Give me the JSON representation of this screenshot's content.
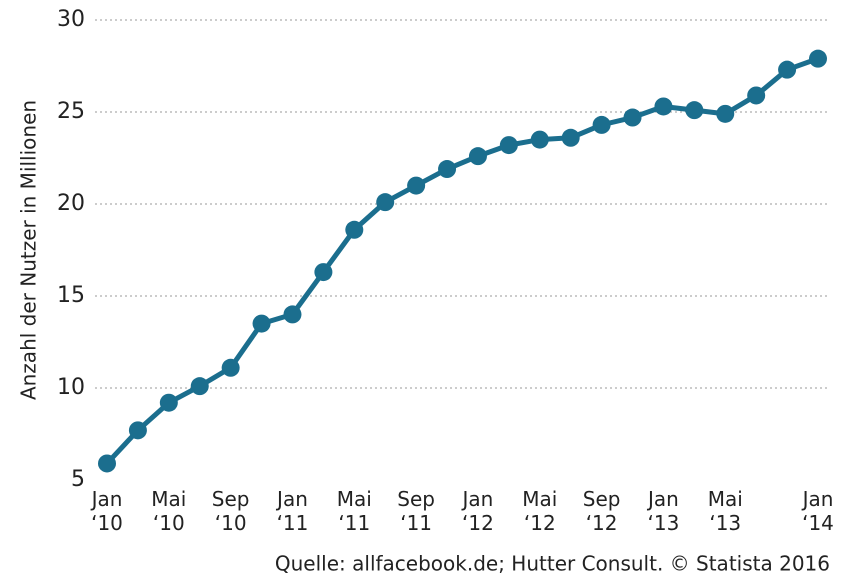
{
  "chart_data": {
    "type": "line",
    "y_label": "Anzahl der Nutzer in Millionen",
    "source": "Quelle: allfacebook.de; Hutter Consult. © Statista 2016",
    "categories": [
      "Jan ‘10",
      null,
      "Mai ‘10",
      null,
      "Sep ‘10",
      null,
      "Jan ‘11",
      null,
      "Mai ‘11",
      null,
      "Sep ‘11",
      null,
      "Jan ‘12",
      null,
      "Mai ‘12",
      null,
      "Sep ‘12",
      null,
      "Jan ‘13",
      null,
      "Mai ‘13",
      null,
      null,
      "Jan ‘14"
    ],
    "series": [
      {
        "name": "Nutzer",
        "color": "#1b6e8e",
        "values": [
          5.9,
          7.7,
          9.2,
          10.1,
          11.1,
          13.5,
          14.0,
          16.3,
          18.6,
          20.1,
          21.0,
          21.9,
          22.6,
          23.2,
          23.5,
          23.6,
          24.3,
          24.7,
          25.3,
          25.1,
          24.9,
          25.9,
          27.3,
          27.9
        ]
      }
    ],
    "ylim": [
      5,
      30
    ],
    "yticks": [
      5,
      10,
      15,
      20,
      25,
      30
    ],
    "grid": true
  }
}
